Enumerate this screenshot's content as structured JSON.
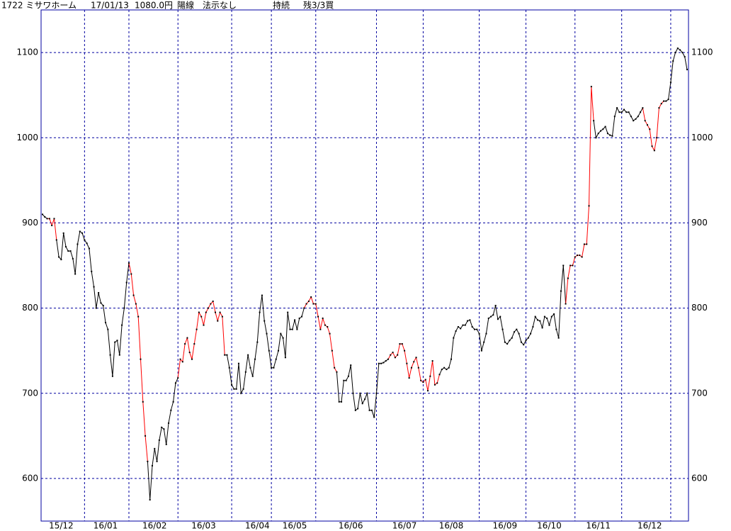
{
  "header": {
    "code_name": "1722 ミサワホーム",
    "date": "17/01/13",
    "price": "1080.0円",
    "candle": "陽線",
    "signal": "法示なし",
    "status": "持続",
    "position": "残3/3買"
  },
  "chart_data": {
    "type": "line",
    "color": "#000000",
    "highlight_color": "#ff0000",
    "highlight_ranges": [
      [
        2,
        6
      ],
      [
        37,
        45
      ],
      [
        58,
        78
      ],
      [
        112,
        126
      ],
      [
        148,
        170
      ],
      [
        224,
        236
      ],
      [
        257,
        266
      ]
    ],
    "values": [
      910,
      907,
      905,
      905,
      897,
      905,
      880,
      860,
      857,
      888,
      872,
      867,
      867,
      858,
      840,
      875,
      890,
      888,
      880,
      876,
      870,
      843,
      825,
      800,
      818,
      806,
      803,
      783,
      775,
      745,
      720,
      760,
      762,
      745,
      780,
      800,
      830,
      853,
      840,
      815,
      805,
      790,
      740,
      690,
      650,
      620,
      575,
      615,
      635,
      620,
      645,
      660,
      658,
      640,
      665,
      680,
      690,
      712,
      718,
      740,
      737,
      758,
      765,
      748,
      740,
      758,
      775,
      795,
      790,
      780,
      795,
      800,
      805,
      808,
      795,
      785,
      795,
      790,
      745,
      745,
      730,
      710,
      705,
      705,
      735,
      700,
      705,
      725,
      745,
      730,
      720,
      740,
      760,
      795,
      815,
      785,
      770,
      750,
      730,
      730,
      740,
      750,
      770,
      765,
      742,
      795,
      775,
      775,
      786,
      775,
      788,
      790,
      800,
      805,
      808,
      813,
      805,
      805,
      790,
      775,
      788,
      780,
      778,
      770,
      750,
      730,
      725,
      690,
      690,
      715,
      715,
      720,
      733,
      700,
      680,
      682,
      700,
      688,
      693,
      700,
      680,
      680,
      672,
      700,
      735,
      735,
      736,
      738,
      740,
      745,
      748,
      742,
      745,
      758,
      758,
      750,
      735,
      718,
      730,
      737,
      742,
      730,
      715,
      713,
      716,
      703,
      720,
      738,
      710,
      712,
      722,
      728,
      730,
      728,
      730,
      740,
      765,
      773,
      778,
      776,
      780,
      780,
      785,
      786,
      778,
      775,
      775,
      770,
      750,
      760,
      770,
      788,
      790,
      792,
      803,
      787,
      790,
      775,
      760,
      758,
      762,
      765,
      772,
      775,
      770,
      760,
      757,
      762,
      765,
      770,
      778,
      790,
      786,
      785,
      777,
      790,
      788,
      780,
      790,
      793,
      775,
      765,
      820,
      850,
      805,
      835,
      850,
      850,
      860,
      862,
      862,
      860,
      875,
      875,
      920,
      1060,
      1020,
      1000,
      1005,
      1008,
      1010,
      1013,
      1005,
      1003,
      1002,
      1025,
      1035,
      1030,
      1030,
      1033,
      1030,
      1030,
      1025,
      1020,
      1022,
      1025,
      1030,
      1035,
      1020,
      1015,
      1010,
      990,
      985,
      1000,
      1035,
      1040,
      1043,
      1043,
      1045,
      1065,
      1090,
      1100,
      1105,
      1103,
      1100,
      1095,
      1080
    ],
    "xlim": [
      0,
      276
    ],
    "ylim": [
      550,
      1150
    ],
    "yticks": [
      600,
      700,
      800,
      900,
      1000,
      1100
    ],
    "month_starts": [
      18,
      37,
      58,
      81,
      98,
      117,
      143,
      163,
      187,
      207,
      228,
      248,
      269
    ],
    "xticks": [
      {
        "value": 8,
        "label": "15/12"
      },
      {
        "value": 27,
        "label": "16/01"
      },
      {
        "value": 48,
        "label": "16/02"
      },
      {
        "value": 69,
        "label": "16/03"
      },
      {
        "value": 92,
        "label": "16/04"
      },
      {
        "value": 108,
        "label": "16/05"
      },
      {
        "value": 132,
        "label": "16/06"
      },
      {
        "value": 155,
        "label": "16/07"
      },
      {
        "value": 175,
        "label": "16/08"
      },
      {
        "value": 198,
        "label": "16/09"
      },
      {
        "value": 217,
        "label": "16/10"
      },
      {
        "value": 238,
        "label": "16/11"
      },
      {
        "value": 260,
        "label": "16/12"
      }
    ],
    "grid": true
  }
}
